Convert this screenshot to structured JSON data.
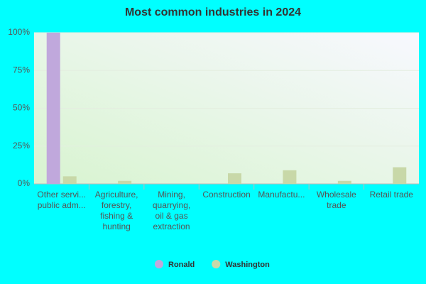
{
  "chart_data": {
    "type": "bar",
    "title": "Most common industries in 2024",
    "categories": [
      "Other servi...\npublic adm...",
      "Agriculture,\nforestry,\nfishing &\nhunting",
      "Mining,\nquarrying,\noil & gas\nextraction",
      "Construction",
      "Manufactu...",
      "Wholesale\ntrade",
      "Retail trade"
    ],
    "series": [
      {
        "name": "Ronald",
        "color": "#c0a8dc",
        "values": [
          100,
          0,
          0,
          0,
          0,
          0,
          0
        ]
      },
      {
        "name": "Washington",
        "color": "#c8d8a8",
        "values": [
          5,
          2,
          0,
          7,
          9,
          2,
          11
        ]
      }
    ],
    "ylim": [
      0,
      100
    ],
    "yticks": [
      {
        "value": 0,
        "label": "0%"
      },
      {
        "value": 25,
        "label": "25%"
      },
      {
        "value": 50,
        "label": "50%"
      },
      {
        "value": 75,
        "label": "75%"
      },
      {
        "value": 100,
        "label": "100%"
      }
    ],
    "grid": true
  }
}
